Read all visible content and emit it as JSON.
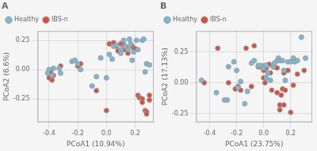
{
  "chart_data": [
    {
      "type": "scatter",
      "title": "A",
      "x_label": "PCoA1 (10.94%)",
      "y_label": "PCoA2 (6.6%)",
      "xlim": [
        -0.48,
        0.33
      ],
      "ylim": [
        -0.45,
        0.33
      ],
      "xticks": [
        -0.4,
        -0.2,
        {
          "value": 0.0,
          "label": "0.0"
        },
        0.2
      ],
      "yticks": [
        -0.25,
        {
          "value": 0.0,
          "label": "0.00"
        },
        0.25
      ],
      "grid": true,
      "legend": "upper left",
      "series": [
        {
          "name": "Healthy",
          "color": "#7ab8d9",
          "marker": "circle",
          "values": [
            [
              -0.41,
              -0.03
            ],
            [
              -0.4,
              0.0
            ],
            [
              -0.38,
              -0.05
            ],
            [
              -0.37,
              0.01
            ],
            [
              -0.33,
              0.01
            ],
            [
              -0.32,
              -0.03
            ],
            [
              -0.24,
              0.07
            ],
            [
              -0.22,
              0.08
            ],
            [
              -0.2,
              0.05
            ],
            [
              -0.18,
              0.0
            ],
            [
              -0.1,
              -0.14
            ],
            [
              -0.07,
              -0.06
            ],
            [
              -0.04,
              0.1
            ],
            [
              0.0,
              -0.07
            ],
            [
              0.02,
              0.13
            ],
            [
              0.04,
              0.09
            ],
            [
              0.05,
              0.2
            ],
            [
              0.07,
              0.21
            ],
            [
              0.1,
              0.17
            ],
            [
              0.1,
              0.14
            ],
            [
              0.12,
              0.25
            ],
            [
              0.13,
              0.2
            ],
            [
              0.15,
              0.17
            ],
            [
              0.16,
              0.26
            ],
            [
              0.17,
              0.22
            ],
            [
              0.18,
              0.08
            ],
            [
              0.19,
              0.15
            ],
            [
              0.21,
              0.25
            ],
            [
              0.22,
              0.17
            ],
            [
              0.25,
              0.25
            ],
            [
              0.26,
              0.26
            ],
            [
              0.27,
              -0.02
            ],
            [
              0.28,
              0.05
            ],
            [
              0.3,
              0.04
            ]
          ]
        },
        {
          "name": "IBS-n",
          "color": "#d94f3d",
          "marker": "circle",
          "values": [
            [
              -0.4,
              -0.07
            ],
            [
              -0.39,
              -0.02
            ],
            [
              -0.38,
              -0.09
            ],
            [
              -0.37,
              -0.05
            ],
            [
              -0.32,
              0.03
            ],
            [
              -0.2,
              0.03
            ],
            [
              -0.18,
              0.05
            ],
            [
              -0.07,
              -0.18
            ],
            [
              0.0,
              -0.35
            ],
            [
              0.02,
              0.22
            ],
            [
              0.05,
              0.23
            ],
            [
              0.07,
              0.2
            ],
            [
              0.08,
              0.16
            ],
            [
              0.1,
              0.22
            ],
            [
              0.12,
              0.21
            ],
            [
              0.13,
              0.17
            ],
            [
              0.14,
              0.19
            ],
            [
              0.15,
              0.14
            ],
            [
              0.18,
              0.2
            ],
            [
              0.19,
              0.18
            ],
            [
              0.2,
              0.18
            ],
            [
              0.22,
              -0.22
            ],
            [
              0.23,
              -0.24
            ],
            [
              0.25,
              -0.25
            ],
            [
              0.25,
              -0.28
            ],
            [
              0.27,
              -0.35
            ],
            [
              0.28,
              -0.36
            ],
            [
              0.28,
              -0.38
            ],
            [
              0.3,
              -0.22
            ],
            [
              0.3,
              -0.26
            ]
          ]
        }
      ]
    },
    {
      "type": "scatter",
      "title": "B",
      "x_label": "PCoA1 (23.75%)",
      "y_label": "PCoA2 (17.13%)",
      "xlim": [
        -0.5,
        0.36
      ],
      "ylim": [
        -0.32,
        0.42
      ],
      "xticks": [
        -0.4,
        -0.2,
        {
          "value": 0.0,
          "label": "0.0"
        },
        0.2
      ],
      "yticks": [
        -0.25,
        {
          "value": 0.0,
          "label": "0.00"
        },
        0.25
      ],
      "grid": true,
      "legend": "upper left",
      "series": [
        {
          "name": "Healthy",
          "color": "#7ab8d9",
          "marker": "circle",
          "values": [
            [
              -0.46,
              0.02
            ],
            [
              -0.35,
              -0.08
            ],
            [
              -0.29,
              -0.14
            ],
            [
              -0.27,
              -0.14
            ],
            [
              -0.26,
              0.13
            ],
            [
              -0.22,
              0.17
            ],
            [
              -0.2,
              0.1
            ],
            [
              -0.19,
              -0.04
            ],
            [
              -0.17,
              0.01
            ],
            [
              -0.14,
              -0.17
            ],
            [
              -0.12,
              -0.07
            ],
            [
              -0.09,
              0.16
            ],
            [
              -0.07,
              0.18
            ],
            [
              -0.04,
              0.14
            ],
            [
              -0.02,
              0.14
            ],
            [
              0.0,
              0.12
            ],
            [
              0.01,
              0.14
            ],
            [
              0.02,
              0.14
            ],
            [
              0.02,
              0.04
            ],
            [
              0.03,
              0.08
            ],
            [
              0.05,
              0.02
            ],
            [
              0.07,
              0.13
            ],
            [
              0.08,
              0.16
            ],
            [
              0.1,
              0.18
            ],
            [
              0.11,
              0.2
            ],
            [
              0.12,
              0.18
            ],
            [
              0.14,
              0.18
            ],
            [
              0.15,
              0.1
            ],
            [
              0.16,
              0.02
            ],
            [
              0.18,
              0.17
            ],
            [
              0.2,
              0.17
            ],
            [
              0.22,
              0.2
            ],
            [
              0.23,
              0.17
            ],
            [
              0.25,
              0.18
            ],
            [
              0.28,
              0.37
            ],
            [
              0.31,
              0.2
            ]
          ]
        },
        {
          "name": "IBS-n",
          "color": "#d94f3d",
          "marker": "circle",
          "values": [
            [
              -0.44,
              0.0
            ],
            [
              -0.34,
              0.28
            ],
            [
              -0.26,
              0.0
            ],
            [
              -0.21,
              -0.05
            ],
            [
              -0.19,
              -0.03
            ],
            [
              -0.17,
              -0.06
            ],
            [
              -0.13,
              0.28
            ],
            [
              -0.09,
              -0.03
            ],
            [
              -0.07,
              0.3
            ],
            [
              -0.04,
              0.13
            ],
            [
              -0.02,
              0.13
            ],
            [
              0.0,
              0.1
            ],
            [
              0.0,
              0.04
            ],
            [
              0.01,
              0.0
            ],
            [
              0.02,
              0.12
            ],
            [
              0.04,
              0.15
            ],
            [
              0.05,
              0.08
            ],
            [
              0.06,
              -0.06
            ],
            [
              0.07,
              0.13
            ],
            [
              0.08,
              0.13
            ],
            [
              0.1,
              0.12
            ],
            [
              0.1,
              -0.08
            ],
            [
              0.12,
              -0.18
            ],
            [
              0.12,
              -0.22
            ],
            [
              0.13,
              -0.1
            ],
            [
              0.14,
              -0.05
            ],
            [
              0.15,
              0.08
            ],
            [
              0.15,
              -0.18
            ],
            [
              0.16,
              -0.06
            ],
            [
              0.18,
              0.1
            ],
            [
              0.2,
              -0.24
            ],
            [
              0.22,
              -0.02
            ],
            [
              0.25,
              0.07
            ],
            [
              0.3,
              0.1
            ]
          ]
        }
      ]
    }
  ]
}
